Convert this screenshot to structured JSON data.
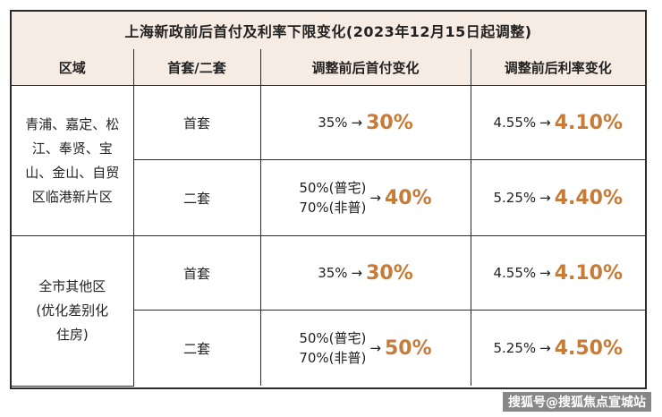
{
  "title": "上海新政前后首付及利率下限变化(2023年12月15日起调整)",
  "headers": [
    "区域",
    "首套/二套",
    "调整前后首付变化",
    "调整前后利率变化"
  ],
  "groups": [
    {
      "region_lines": [
        "青浦、嘉定、松",
        "江、奉贤、宝",
        "山、金山、自贸",
        "区临港新片区"
      ],
      "rows": [
        {
          "type": "首套",
          "down_before": [
            "35%"
          ],
          "arrow": "→",
          "down_after": "30%",
          "rate_before": "4.55%",
          "rate_after": "4.10%"
        },
        {
          "type": "二套",
          "down_before": [
            "50%(普宅)",
            "70%(非普)"
          ],
          "arrow": "→",
          "down_after": "40%",
          "rate_before": "5.25%",
          "rate_after": "4.40%"
        }
      ]
    },
    {
      "region_lines": [
        "全市其他区",
        "(优化差别化",
        "住房)"
      ],
      "rows": [
        {
          "type": "首套",
          "down_before": [
            "35%"
          ],
          "arrow": "→",
          "down_after": "30%",
          "rate_before": "4.55%",
          "rate_after": "4.10%"
        },
        {
          "type": "二套",
          "down_before": [
            "50%(普宅)",
            "70%(非普)"
          ],
          "arrow": "→",
          "down_after": "50%",
          "rate_before": "5.25%",
          "rate_after": "4.50%"
        }
      ]
    }
  ],
  "watermark": "搜狐号@搜狐焦点宣城站",
  "colors": {
    "highlight": "#c87b36",
    "header_bg": "#f7ece3",
    "border": "#2a2a2a"
  }
}
